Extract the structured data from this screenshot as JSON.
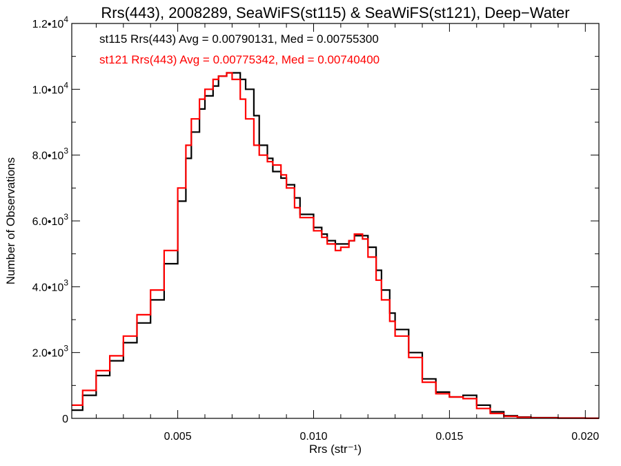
{
  "chart_data": {
    "type": "line",
    "step": true,
    "title": "Rrs(443), 2008289, SeaWiFS(st115) & SeaWiFS(st121), Deep−Water",
    "xlabel": "Rrs (str⁻¹)",
    "ylabel": "Number of Observations",
    "xlim": [
      0.0011,
      0.0205
    ],
    "ylim": [
      0,
      12000
    ],
    "grid": false,
    "x_ticks": [
      0.005,
      0.01,
      0.015,
      0.02
    ],
    "x_tick_labels": [
      "0.005",
      "0.010",
      "0.015",
      "0.020"
    ],
    "y_ticks": [
      0,
      2000,
      4000,
      6000,
      8000,
      10000,
      12000
    ],
    "y_tick_labels": [
      {
        "mantissa": "0",
        "exp": ""
      },
      {
        "mantissa": "2.0•10",
        "exp": "3"
      },
      {
        "mantissa": "4.0•10",
        "exp": "3"
      },
      {
        "mantissa": "6.0•10",
        "exp": "3"
      },
      {
        "mantissa": "8.0•10",
        "exp": "3"
      },
      {
        "mantissa": "1.0•10",
        "exp": "4"
      },
      {
        "mantissa": "1.2•10",
        "exp": "4"
      }
    ],
    "annotations": [
      "st115 Rrs(443) Avg = 0.00790131, Med = 0.00755300",
      "st121 Rrs(443) Avg = 0.00775342, Med = 0.00740400"
    ],
    "series": [
      {
        "color": "#000000",
        "x": [
          0.0011,
          0.0015,
          0.002,
          0.0025,
          0.003,
          0.0035,
          0.004,
          0.0045,
          0.005,
          0.0053,
          0.0055,
          0.0058,
          0.006,
          0.0063,
          0.0065,
          0.0068,
          0.007,
          0.0073,
          0.0075,
          0.0078,
          0.008,
          0.0083,
          0.0085,
          0.0088,
          0.009,
          0.0093,
          0.0095,
          0.01,
          0.0103,
          0.0105,
          0.0108,
          0.011,
          0.0113,
          0.0115,
          0.0118,
          0.012,
          0.0123,
          0.0125,
          0.0128,
          0.013,
          0.0135,
          0.014,
          0.0145,
          0.015,
          0.0153,
          0.0155,
          0.016,
          0.0165,
          0.017,
          0.0175,
          0.018,
          0.019,
          0.02,
          0.0205
        ],
        "values": [
          250,
          700,
          1300,
          1750,
          2300,
          2900,
          3600,
          4700,
          6600,
          7900,
          8700,
          9400,
          9800,
          10100,
          10400,
          10500,
          10500,
          10300,
          10000,
          9200,
          8300,
          7900,
          7500,
          7300,
          7100,
          6700,
          6200,
          5800,
          5600,
          5400,
          5300,
          5300,
          5400,
          5550,
          5550,
          5200,
          4500,
          3900,
          3200,
          2700,
          2000,
          1200,
          800,
          650,
          650,
          700,
          400,
          200,
          80,
          40,
          20,
          10,
          5,
          5
        ]
      },
      {
        "color": "#ff0000",
        "x": [
          0.0011,
          0.0015,
          0.002,
          0.0025,
          0.003,
          0.0035,
          0.004,
          0.0045,
          0.005,
          0.0053,
          0.0055,
          0.0058,
          0.006,
          0.0063,
          0.0065,
          0.0068,
          0.007,
          0.0073,
          0.0075,
          0.0078,
          0.008,
          0.0083,
          0.0085,
          0.0088,
          0.009,
          0.0093,
          0.0095,
          0.01,
          0.0103,
          0.0105,
          0.0108,
          0.011,
          0.0113,
          0.0115,
          0.0118,
          0.012,
          0.0123,
          0.0125,
          0.0128,
          0.013,
          0.0135,
          0.014,
          0.0145,
          0.015,
          0.0153,
          0.0155,
          0.016,
          0.0165,
          0.017,
          0.0175,
          0.018,
          0.019,
          0.02,
          0.0205
        ],
        "values": [
          400,
          850,
          1450,
          1900,
          2500,
          3150,
          3900,
          5100,
          7000,
          8300,
          9100,
          9700,
          10000,
          10300,
          10400,
          10500,
          10300,
          9700,
          9100,
          8300,
          8000,
          7800,
          7700,
          7400,
          7000,
          6400,
          6100,
          5700,
          5500,
          5300,
          5100,
          5200,
          5400,
          5600,
          5450,
          4900,
          4200,
          3600,
          2950,
          2500,
          1850,
          1100,
          750,
          650,
          650,
          600,
          300,
          150,
          60,
          30,
          15,
          8,
          5,
          5
        ]
      }
    ]
  }
}
